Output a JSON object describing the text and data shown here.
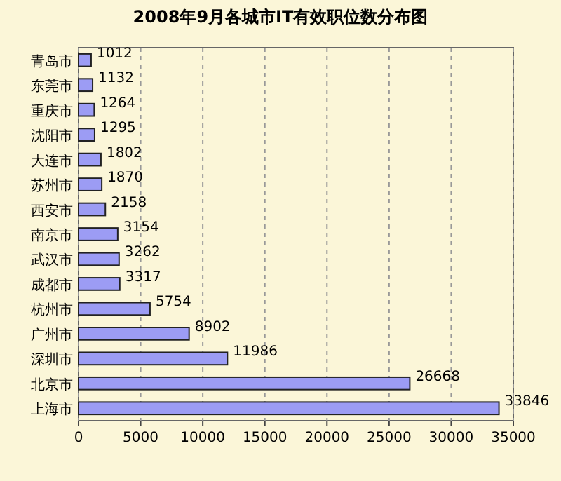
{
  "chart_data": {
    "type": "bar",
    "orientation": "horizontal",
    "title": "2008年9月各城市IT有效职位数分布图",
    "categories": [
      "青岛市",
      "东莞市",
      "重庆市",
      "沈阳市",
      "大连市",
      "苏州市",
      "西安市",
      "南京市",
      "武汉市",
      "成都市",
      "杭州市",
      "广州市",
      "深圳市",
      "北京市",
      "上海市"
    ],
    "values": [
      1012,
      1132,
      1264,
      1295,
      1802,
      1870,
      2158,
      3154,
      3262,
      3317,
      5754,
      8902,
      11986,
      26668,
      33846
    ],
    "color": "#9c9cf4",
    "data_labels": true,
    "xlim": [
      0,
      35000
    ],
    "xticks": [
      0,
      5000,
      10000,
      15000,
      20000,
      25000,
      30000,
      35000
    ],
    "grid": "x"
  }
}
